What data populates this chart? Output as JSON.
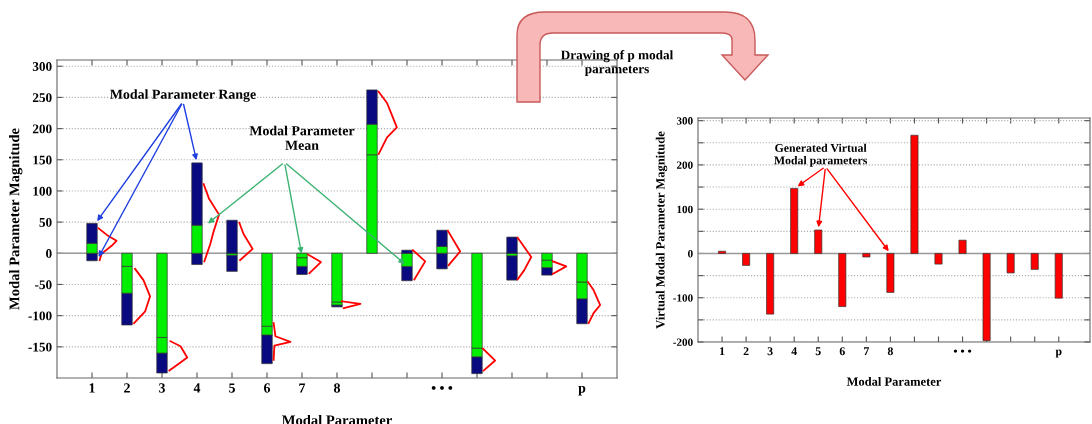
{
  "chart_data": [
    {
      "type": "bar",
      "xlabel": "Modal Parameter",
      "ylabel": "Modal Parameter Magnitude",
      "x": [
        1,
        2,
        3,
        4,
        5,
        6,
        7,
        8,
        9,
        10,
        11,
        12,
        13,
        14,
        15
      ],
      "xlim": [
        0,
        16
      ],
      "xticks": [
        {
          "value": 1,
          "label": "1"
        },
        {
          "value": 2,
          "label": "2"
        },
        {
          "value": 3,
          "label": "3"
        },
        {
          "value": 4,
          "label": "4"
        },
        {
          "value": 5,
          "label": "5"
        },
        {
          "value": 6,
          "label": "6"
        },
        {
          "value": 7,
          "label": "7"
        },
        {
          "value": 8,
          "label": "8"
        },
        {
          "value": 9,
          "label": null
        },
        {
          "value": 10,
          "label": null
        },
        {
          "value": 11,
          "label": "• • •"
        },
        {
          "value": 12,
          "label": null
        },
        {
          "value": 13,
          "label": null
        },
        {
          "value": 14,
          "label": null
        },
        {
          "value": 15,
          "label": "p"
        }
      ],
      "ylim": [
        -200,
        310
      ],
      "yticks": [
        -150,
        -100,
        -50,
        0,
        50,
        100,
        150,
        200,
        250,
        300
      ],
      "series": [
        {
          "color": "#0a0a80",
          "base": [
            -12,
            -115,
            -192,
            -18,
            -29,
            -177,
            -34,
            -86,
            null,
            -44,
            -25,
            -193,
            -43,
            -35,
            -113
          ],
          "values": [
            12,
            51,
            32,
            18,
            26,
            46,
            13,
            3,
            null,
            23,
            25,
            27,
            39,
            12,
            40
          ]
        },
        {
          "color": "#00ee00",
          "base": [
            0,
            -64,
            -160,
            0,
            -3,
            -131,
            -21,
            -83,
            0,
            -21,
            0,
            -166,
            -4,
            -23,
            -73
          ],
          "values": [
            16,
            43,
            25,
            45,
            3,
            14,
            14,
            5,
            158,
            21,
            11,
            14,
            4,
            12,
            27
          ]
        },
        {
          "color": "#00ee00",
          "base": [
            null,
            -21,
            -135,
            null,
            null,
            -117,
            -7,
            -78,
            158,
            null,
            null,
            -152,
            null,
            -11,
            -46
          ],
          "values": [
            null,
            21,
            135,
            null,
            null,
            117,
            7,
            78,
            49,
            null,
            null,
            152,
            null,
            11,
            46
          ]
        },
        {
          "color": "#0a0a80",
          "base": [
            16,
            null,
            null,
            45,
            0,
            null,
            null,
            null,
            207,
            0,
            11,
            null,
            0,
            null,
            null
          ],
          "values": [
            32,
            null,
            null,
            100,
            53,
            null,
            null,
            null,
            55,
            5,
            26,
            null,
            26,
            null,
            null
          ]
        },
        {
          "type": "line",
          "color": "#ff0000",
          "x": [
            1.19,
            1.46,
            1.7,
            1.56,
            1.27,
            1.22
          ],
          "values": [
            40,
            28,
            20,
            12,
            -1,
            -11
          ]
        },
        {
          "type": "line",
          "color": "#ff0000",
          "x": [
            2.23,
            2.47,
            2.66,
            2.52,
            2.2
          ],
          "values": [
            -25,
            -43,
            -69,
            -93,
            -112
          ]
        },
        {
          "type": "line",
          "color": "#ff0000",
          "x": [
            3.24,
            3.53,
            3.72,
            3.48,
            3.21
          ],
          "values": [
            -141,
            -149,
            -167,
            -177,
            -188
          ]
        },
        {
          "type": "line",
          "color": "#ff0000",
          "x": [
            4.19,
            4.34,
            4.63,
            4.48,
            4.38,
            4.21
          ],
          "values": [
            111,
            88,
            62,
            36,
            15,
            -13
          ]
        },
        {
          "type": "line",
          "color": "#ff0000",
          "x": [
            5.21,
            5.33,
            5.59,
            5.23
          ],
          "values": [
            49,
            31,
            7,
            -11
          ]
        },
        {
          "type": "line",
          "color": "#ff0000",
          "x": [
            6.19,
            6.24,
            6.67,
            6.21,
            6.19
          ],
          "values": [
            -112,
            -133,
            -142,
            -148,
            -171
          ]
        },
        {
          "type": "line",
          "color": "#ff0000",
          "x": [
            7.17,
            7.54,
            7.21
          ],
          "values": [
            -2,
            -14,
            -32
          ]
        },
        {
          "type": "line",
          "color": "#ff0000",
          "x": [
            8.14,
            8.67,
            8.19
          ],
          "values": [
            -77,
            -81,
            -88
          ]
        },
        {
          "type": "line",
          "color": "#ff0000",
          "x": [
            9.19,
            9.43,
            9.71,
            9.43,
            9.19
          ],
          "values": [
            259,
            241,
            202,
            186,
            159
          ]
        },
        {
          "type": "line",
          "color": "#ff0000",
          "x": [
            10.17,
            10.52,
            10.21
          ],
          "values": [
            5,
            -13,
            -42
          ]
        },
        {
          "type": "line",
          "color": "#ff0000",
          "x": [
            11.17,
            11.52,
            11.19
          ],
          "values": [
            36,
            3,
            -19
          ]
        },
        {
          "type": "line",
          "color": "#ff0000",
          "x": [
            12.17,
            12.52,
            12.19
          ],
          "values": [
            -153,
            -172,
            -188
          ]
        },
        {
          "type": "line",
          "color": "#ff0000",
          "x": [
            13.16,
            13.29,
            13.55,
            13.35,
            13.16
          ],
          "values": [
            25,
            15,
            -6,
            -27,
            -42
          ]
        },
        {
          "type": "line",
          "color": "#ff0000",
          "x": [
            14.17,
            14.55,
            14.17
          ],
          "values": [
            -13,
            -21,
            -33
          ]
        },
        {
          "type": "line",
          "color": "#ff0000",
          "x": [
            15.17,
            15.33,
            15.52,
            15.33,
            15.19
          ],
          "values": [
            -46,
            -59,
            -83,
            -96,
            -112
          ]
        }
      ],
      "annotations": [
        {
          "text": "Modal Parameter Range",
          "x": 4,
          "y": 145
        },
        {
          "text": "Modal Parameter\nMean",
          "x": 7,
          "y": -5
        }
      ],
      "grid": "y",
      "marker": "none",
      "line_style": "solid"
    },
    {
      "type": "bar",
      "xlabel": "Modal Parameter",
      "ylabel": "Virtual Modal Parameter Magnitude",
      "x": [
        1,
        2,
        3,
        4,
        5,
        6,
        7,
        8,
        9,
        10,
        11,
        12,
        13,
        14,
        15
      ],
      "xlim": [
        0,
        16.3
      ],
      "xticks": [
        {
          "value": 1,
          "label": "1"
        },
        {
          "value": 2,
          "label": "2"
        },
        {
          "value": 3,
          "label": "3"
        },
        {
          "value": 4,
          "label": "4"
        },
        {
          "value": 5,
          "label": "5"
        },
        {
          "value": 6,
          "label": "6"
        },
        {
          "value": 7,
          "label": "7"
        },
        {
          "value": 8,
          "label": "8"
        },
        {
          "value": 9,
          "label": null
        },
        {
          "value": 10,
          "label": null
        },
        {
          "value": 11,
          "label": "• • •"
        },
        {
          "value": 12,
          "label": null
        },
        {
          "value": 13,
          "label": null
        },
        {
          "value": 14,
          "label": null
        },
        {
          "value": 15,
          "label": "p"
        }
      ],
      "ylim": [
        -200,
        306
      ],
      "yticks": [
        -200,
        {
          "value": -150,
          "label": null
        },
        -100,
        {
          "value": -50,
          "label": null
        },
        0,
        {
          "value": 50,
          "label": null
        },
        100,
        {
          "value": 150,
          "label": null
        },
        200,
        {
          "value": 250,
          "label": null
        },
        300
      ],
      "series": [
        {
          "color": "#ff0000",
          "values": [
            5,
            -27,
            -137,
            147,
            53,
            -120,
            -8,
            -88,
            267,
            -24,
            30,
            -197,
            -44,
            -36,
            -101
          ]
        }
      ],
      "annotations": [
        {
          "text": "Generated Virtual\nModal parameters",
          "x": 5,
          "y": 53
        },
        "Drawing of p modal\nparameters"
      ],
      "grid": "y"
    }
  ]
}
